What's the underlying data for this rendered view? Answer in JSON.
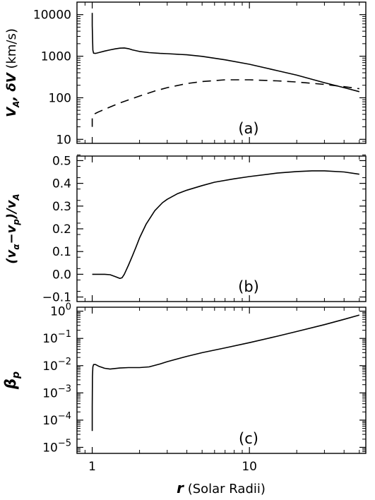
{
  "chart_data": [
    {
      "id": "panel_a",
      "type": "line",
      "panel_label": "(a)",
      "ylabel_parts": [
        "V",
        "A",
        ", δV",
        " (km/s)"
      ],
      "xscale": "log",
      "yscale": "log",
      "xlim": [
        0.8,
        55
      ],
      "ylim": [
        8,
        20000
      ],
      "yticks": [
        10,
        100,
        1000,
        10000
      ],
      "ytick_labels": [
        "10",
        "100",
        "1000",
        "10000"
      ],
      "series": [
        {
          "style": "solid",
          "x": [
            1.0,
            1.0,
            1.005,
            1.01,
            1.02,
            1.05,
            1.1,
            1.2,
            1.3,
            1.4,
            1.5,
            1.6,
            1.7,
            1.8,
            2.0,
            2.3,
            2.7,
            3.0,
            4.0,
            5.0,
            7.0,
            10.0,
            15.0,
            20.0,
            30.0,
            40.0,
            50.0
          ],
          "y": [
            11000,
            5500,
            2500,
            1400,
            1180,
            1170,
            1220,
            1330,
            1420,
            1500,
            1560,
            1580,
            1520,
            1420,
            1300,
            1220,
            1170,
            1150,
            1080,
            990,
            820,
            640,
            450,
            350,
            230,
            175,
            140
          ]
        },
        {
          "style": "dashed",
          "x": [
            1.0,
            1.0,
            1.02,
            1.1,
            1.3,
            1.5,
            2.0,
            2.5,
            3.0,
            4.0,
            5.0,
            7.0,
            10.0,
            15.0,
            20.0,
            30.0,
            40.0,
            50.0
          ],
          "y": [
            20,
            35,
            40,
            46,
            60,
            75,
            110,
            145,
            175,
            220,
            245,
            270,
            270,
            255,
            240,
            210,
            185,
            165
          ]
        }
      ]
    },
    {
      "id": "panel_b",
      "type": "line",
      "panel_label": "(b)",
      "ylabel_parts": [
        "(v",
        "α",
        "−v",
        "p",
        ")/v",
        "A"
      ],
      "xscale": "log",
      "yscale": "linear",
      "xlim": [
        0.8,
        55
      ],
      "ylim": [
        -0.12,
        0.52
      ],
      "yticks": [
        -0.1,
        0.0,
        0.1,
        0.2,
        0.3,
        0.4,
        0.5
      ],
      "ytick_labels": [
        "−0.1",
        "0.0",
        "0.1",
        "0.2",
        "0.3",
        "0.4",
        "0.5"
      ],
      "series": [
        {
          "style": "solid",
          "x": [
            1.0,
            1.1,
            1.2,
            1.3,
            1.4,
            1.5,
            1.55,
            1.6,
            1.7,
            1.8,
            1.9,
            2.0,
            2.2,
            2.5,
            2.8,
            3.0,
            3.5,
            4.0,
            5.0,
            6.0,
            8.0,
            10.0,
            15.0,
            20.0,
            25.0,
            30.0,
            40.0,
            50.0
          ],
          "y": [
            0.0,
            0.0,
            0.0,
            -0.002,
            -0.01,
            -0.018,
            -0.015,
            0.0,
            0.04,
            0.08,
            0.12,
            0.16,
            0.22,
            0.28,
            0.315,
            0.33,
            0.355,
            0.37,
            0.39,
            0.405,
            0.42,
            0.43,
            0.445,
            0.452,
            0.455,
            0.455,
            0.45,
            0.44
          ]
        }
      ]
    },
    {
      "id": "panel_c",
      "type": "line",
      "panel_label": "(c)",
      "ylabel_parts": [
        "β",
        "p"
      ],
      "xscale": "log",
      "yscale": "log",
      "xlim": [
        0.8,
        55
      ],
      "ylim": [
        6e-06,
        1.4
      ],
      "yticks": [
        1e-05,
        0.0001,
        0.001,
        0.01,
        0.1,
        1
      ],
      "ytick_exponents": [
        "−5",
        "−4",
        "−3",
        "−2",
        "−1",
        "0"
      ],
      "ytick_base": "10",
      "xlabel_parts": [
        "r",
        " (Solar Radii)"
      ],
      "xticks": [
        1,
        10
      ],
      "xtick_labels": [
        "1",
        "10"
      ],
      "series": [
        {
          "style": "solid",
          "x": [
            1.0,
            1.0,
            1.003,
            1.01,
            1.02,
            1.05,
            1.1,
            1.2,
            1.3,
            1.5,
            1.7,
            2.0,
            2.3,
            2.7,
            3.0,
            4.0,
            5.0,
            7.0,
            10.0,
            15.0,
            20.0,
            30.0,
            40.0,
            50.0
          ],
          "y": [
            4e-05,
            0.0003,
            0.004,
            0.009,
            0.011,
            0.011,
            0.0095,
            0.008,
            0.0075,
            0.0082,
            0.0085,
            0.0085,
            0.009,
            0.0115,
            0.014,
            0.022,
            0.03,
            0.045,
            0.07,
            0.12,
            0.18,
            0.32,
            0.5,
            0.72
          ]
        }
      ]
    }
  ]
}
